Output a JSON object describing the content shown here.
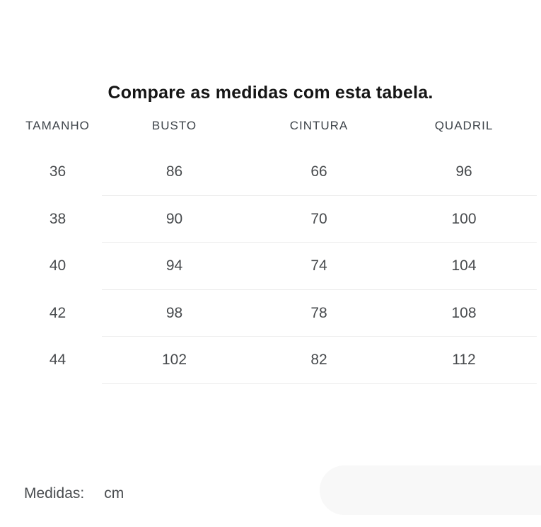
{
  "title": "Compare as medidas com esta tabela.",
  "table": {
    "headers": [
      "TAMANHO",
      "BUSTO",
      "CINTURA",
      "QUADRIL"
    ],
    "rows": [
      [
        "36",
        "86",
        "66",
        "96"
      ],
      [
        "38",
        "90",
        "70",
        "100"
      ],
      [
        "40",
        "94",
        "74",
        "104"
      ],
      [
        "42",
        "98",
        "78",
        "108"
      ],
      [
        "44",
        "102",
        "82",
        "112"
      ]
    ]
  },
  "footer": {
    "label": "Medidas:",
    "unit": "cm"
  },
  "colors": {
    "title_text": "#151515",
    "header_text": "#3d4349",
    "cell_text": "#474a4d",
    "divider": "#ededed",
    "pill_background": "#f8f8f8",
    "page_background": "#ffffff"
  }
}
